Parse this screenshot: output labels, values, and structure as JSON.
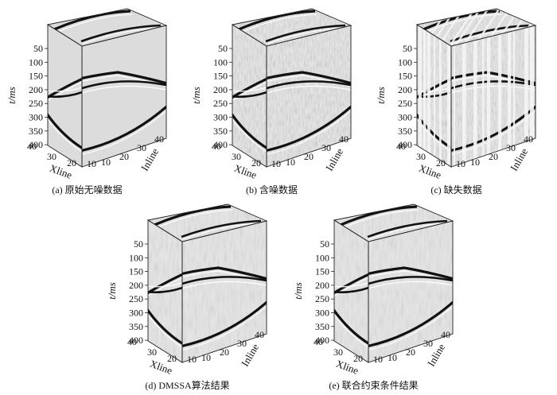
{
  "figure": {
    "panels": [
      {
        "caption": "(a) 原始无噪数据",
        "variant": "clean"
      },
      {
        "caption": "(b) 含噪数据",
        "variant": "noisy"
      },
      {
        "caption": "(c) 缺失数据",
        "variant": "missing"
      },
      {
        "caption": "(d) DMSSA算法结果",
        "variant": "result"
      },
      {
        "caption": "(e) 联合约束条件结果",
        "variant": "result"
      }
    ],
    "axes": {
      "t_label": "t/ms",
      "t_ticks": [
        "50",
        "100",
        "150",
        "200",
        "250",
        "300",
        "350",
        "400"
      ],
      "xline_label": "Xline",
      "xline_ticks": [
        "40",
        "30",
        "20",
        "10"
      ],
      "inline_label": "Inline",
      "inline_ticks": [
        "10",
        "20",
        "30",
        "40"
      ]
    }
  }
}
